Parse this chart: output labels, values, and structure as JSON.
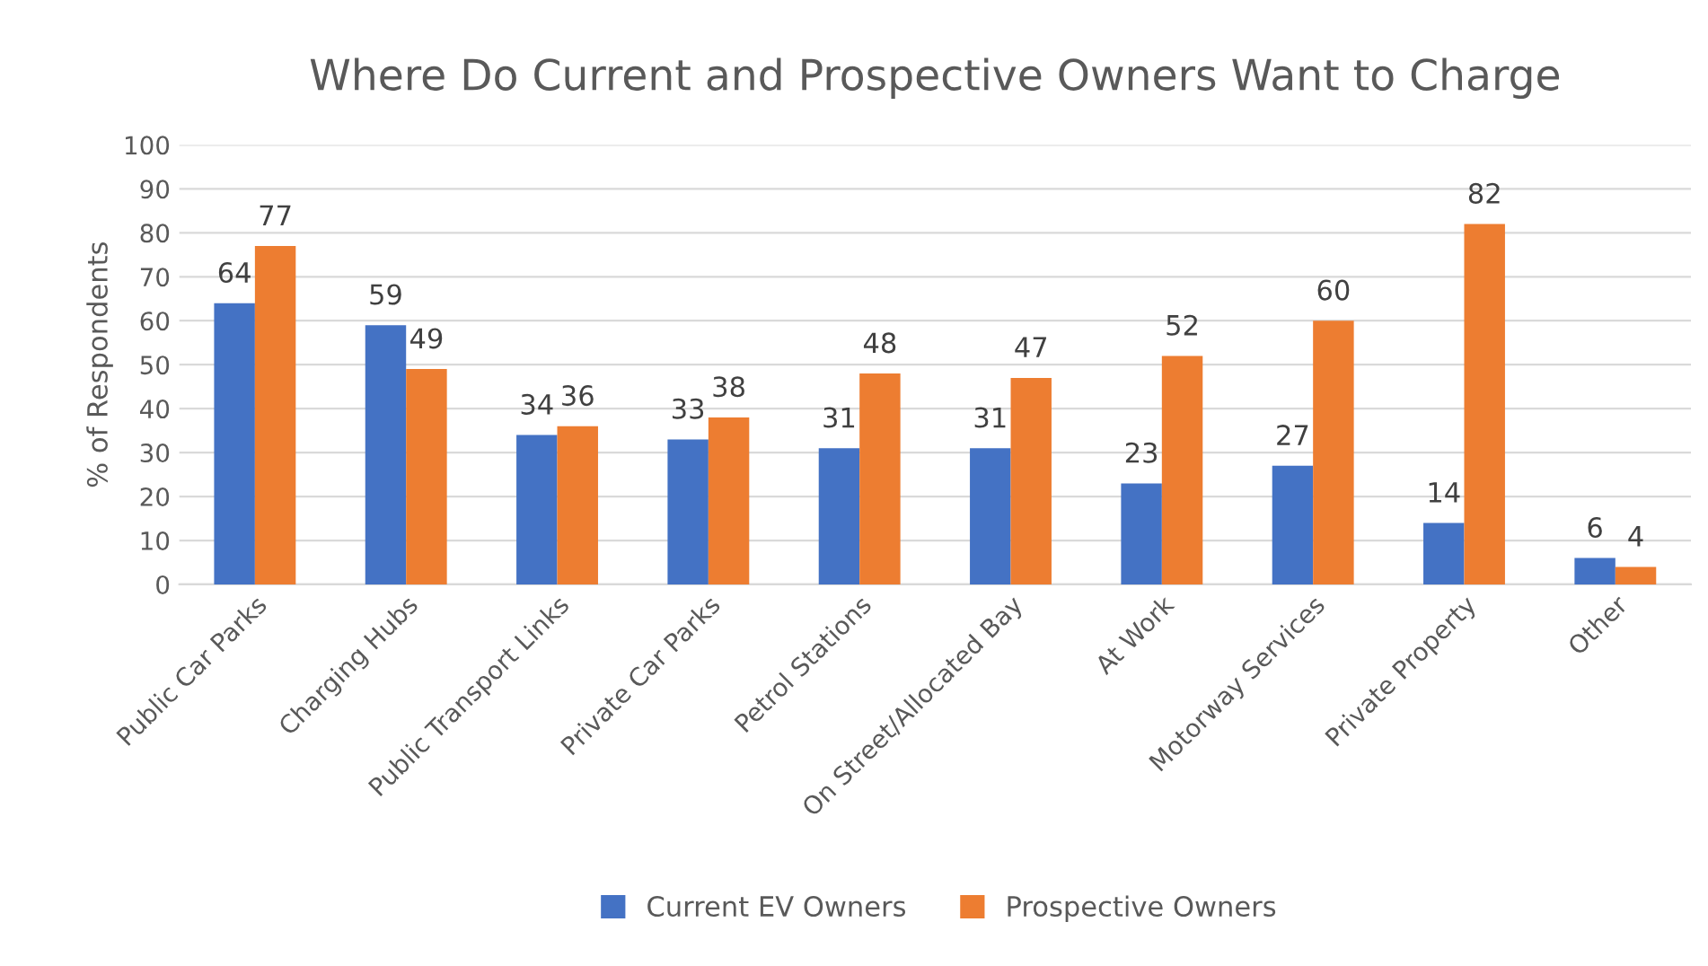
{
  "chart_data": {
    "type": "bar",
    "title": "Where Do Current and Prospective Owners Want to Charge",
    "ylabel": "% of Respondents",
    "categories": [
      "Public Car Parks",
      "Charging Hubs",
      "Public Transport Links",
      "Private Car Parks",
      "Petrol Stations",
      "On Street/Allocated Bay",
      "At Work",
      "Motorway Services",
      "Private Property",
      "Other"
    ],
    "series": [
      {
        "name": "Current EV Owners",
        "color": "#4472c4",
        "values": [
          64,
          59,
          34,
          33,
          31,
          31,
          23,
          27,
          14,
          6
        ]
      },
      {
        "name": "Prospective Owners",
        "color": "#ed7d31",
        "values": [
          77,
          49,
          36,
          38,
          48,
          47,
          52,
          60,
          82,
          4
        ]
      }
    ],
    "ylim": [
      0,
      100
    ],
    "yticks": [
      0,
      10,
      20,
      30,
      40,
      50,
      60,
      70,
      80,
      90,
      100
    ],
    "grid": "y",
    "legend": "bottom",
    "data_labels": true
  }
}
